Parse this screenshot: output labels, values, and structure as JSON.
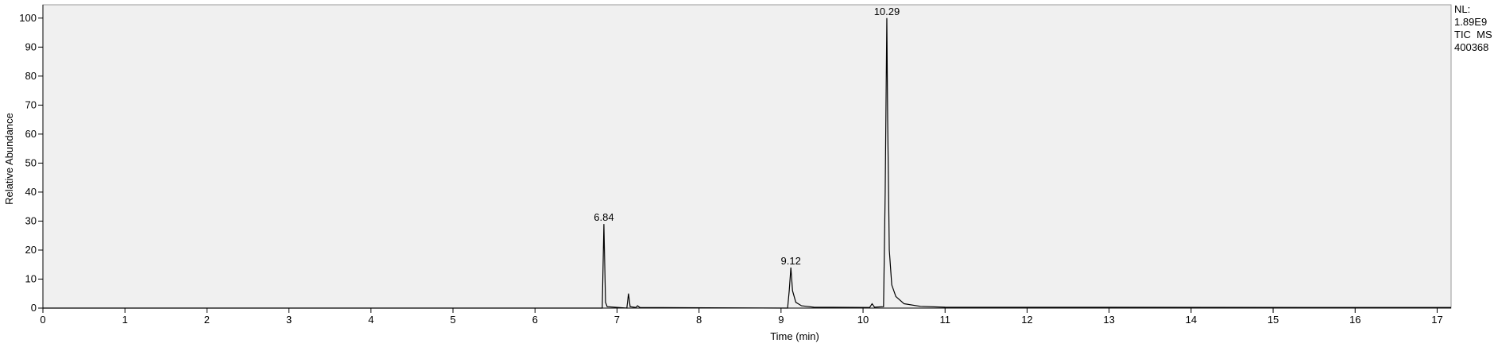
{
  "chart_data": {
    "type": "line",
    "x_label": "Time (min)",
    "y_label": "Relative Abundance",
    "series": [
      {
        "name": null,
        "color": "#000000",
        "x": [
          0,
          6.82,
          6.84,
          6.86,
          6.88,
          7.12,
          7.14,
          7.16,
          7.23,
          7.25,
          7.28,
          9.08,
          9.1,
          9.12,
          9.14,
          9.18,
          9.25,
          9.4,
          10.08,
          10.11,
          10.14,
          10.25,
          10.27,
          10.29,
          10.3,
          10.32,
          10.35,
          10.4,
          10.5,
          10.7,
          11,
          17.17
        ],
        "values": [
          0,
          0,
          29,
          2,
          0.5,
          0,
          5,
          0.5,
          0.2,
          0.8,
          0.2,
          0,
          6,
          14,
          6,
          2,
          0.8,
          0.3,
          0.2,
          1.5,
          0.3,
          0.5,
          40,
          100,
          65,
          20,
          8,
          4,
          1.5,
          0.6,
          0.3,
          0.2
        ]
      }
    ],
    "annotations": [
      {
        "text": "6.84",
        "x": 6.84,
        "y": 29
      },
      {
        "text": "9.12",
        "x": 9.12,
        "y": 14
      },
      {
        "text": "10.29",
        "x": 10.29,
        "y": 100
      }
    ],
    "side_text": [
      "NL:",
      "1.89E9",
      "TIC  MS",
      "400368"
    ],
    "xlim": [
      0,
      17.17
    ],
    "ylim": [
      0,
      104.6
    ],
    "xticks": [
      0,
      1,
      2,
      3,
      4,
      5,
      6,
      7,
      8,
      9,
      10,
      11,
      12,
      13,
      14,
      15,
      16,
      17
    ],
    "yticks": [
      0,
      10,
      20,
      30,
      40,
      50,
      60,
      70,
      80,
      90,
      100
    ],
    "plot_background": "#f0f0f0"
  }
}
